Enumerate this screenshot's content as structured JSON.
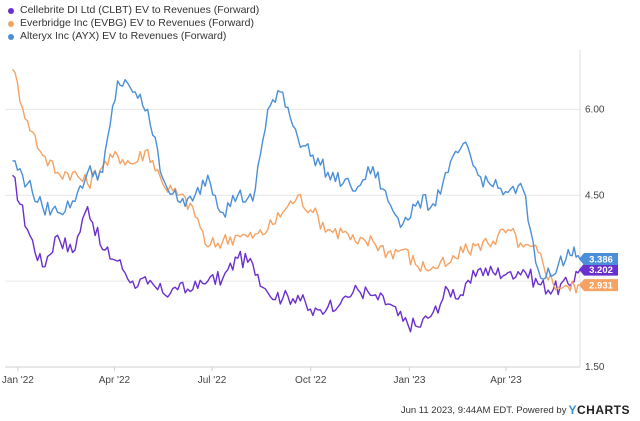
{
  "footer": {
    "timestamp": "Jun 11 2023, 9:44AM EDT.  Powered by",
    "brand_y": "Y",
    "brand_rest": "CHARTS"
  },
  "chart_data": {
    "type": "line",
    "title": "",
    "xlabel": "",
    "ylabel": "",
    "x_ticks": [
      "Jan '22",
      "Apr '22",
      "Jul '22",
      "Oct '22",
      "Jan '23",
      "Apr '23"
    ],
    "y_ticks": [
      1.5,
      3.0,
      4.5,
      6.0
    ],
    "y_tick_labels": [
      "1.50",
      "",
      "4.50",
      "6.00"
    ],
    "ylim": [
      1.5,
      6.95
    ],
    "grid": "horizontal",
    "legend_position": "top-left",
    "x": [
      "2021-12-27",
      "2022-01-10",
      "2022-01-24",
      "2022-02-07",
      "2022-02-21",
      "2022-03-07",
      "2022-03-21",
      "2022-04-04",
      "2022-04-18",
      "2022-05-02",
      "2022-05-16",
      "2022-05-30",
      "2022-06-13",
      "2022-06-27",
      "2022-07-11",
      "2022-07-25",
      "2022-08-08",
      "2022-08-22",
      "2022-09-05",
      "2022-09-19",
      "2022-10-03",
      "2022-10-17",
      "2022-10-31",
      "2022-11-14",
      "2022-11-28",
      "2022-12-12",
      "2022-12-26",
      "2023-01-09",
      "2023-01-23",
      "2023-02-06",
      "2023-02-20",
      "2023-03-06",
      "2023-03-20",
      "2023-04-03",
      "2023-04-17",
      "2023-05-01",
      "2023-05-15",
      "2023-05-29",
      "2023-06-09"
    ],
    "series": [
      {
        "name": "Cellebrite DI Ltd (CLBT) EV to Revenues (Forward)",
        "color": "#6a2fcf",
        "end_label": "3.202",
        "values": [
          4.85,
          3.9,
          3.25,
          3.8,
          3.5,
          4.3,
          3.55,
          3.35,
          3.0,
          2.95,
          2.8,
          2.85,
          2.85,
          3.0,
          3.05,
          3.4,
          3.3,
          2.8,
          2.7,
          2.75,
          2.4,
          2.55,
          2.7,
          2.85,
          2.75,
          2.6,
          2.3,
          2.2,
          2.45,
          2.85,
          2.75,
          3.2,
          3.15,
          3.15,
          3.2,
          2.95,
          2.85,
          2.95,
          3.202
        ]
      },
      {
        "name": "Everbridge Inc (EVBG) EV to Revenues (Forward)",
        "color": "#f5a263",
        "end_label": "2.931",
        "values": [
          6.7,
          5.8,
          5.2,
          4.9,
          4.9,
          4.7,
          5.0,
          5.2,
          5.05,
          5.3,
          4.7,
          4.5,
          4.3,
          3.6,
          3.7,
          3.8,
          3.75,
          3.9,
          4.2,
          4.5,
          4.2,
          3.9,
          3.85,
          3.65,
          3.7,
          3.5,
          3.55,
          3.25,
          3.25,
          3.3,
          3.5,
          3.65,
          3.7,
          3.9,
          3.6,
          3.5,
          2.95,
          2.9,
          2.931
        ]
      },
      {
        "name": "Alteryx Inc (AYX) EV to Revenues (Forward)",
        "color": "#4a8fd8",
        "end_label": "3.386",
        "values": [
          5.1,
          4.7,
          4.3,
          4.2,
          4.4,
          4.9,
          4.9,
          6.5,
          6.3,
          6.0,
          4.8,
          4.4,
          4.4,
          4.85,
          4.2,
          4.5,
          4.4,
          6.0,
          6.3,
          5.5,
          5.2,
          4.9,
          4.7,
          4.65,
          5.0,
          4.4,
          4.0,
          4.4,
          4.35,
          4.9,
          5.4,
          4.85,
          4.65,
          4.55,
          4.6,
          3.2,
          3.1,
          3.55,
          3.386
        ]
      }
    ]
  }
}
